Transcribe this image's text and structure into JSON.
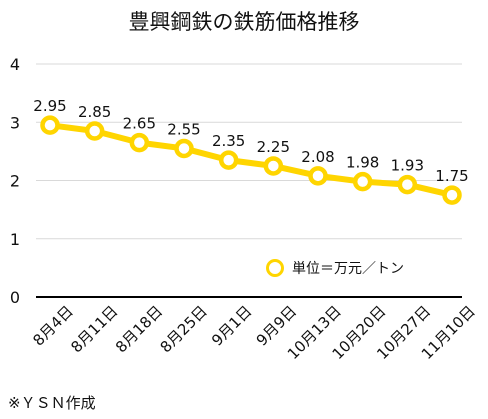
{
  "chart_data": {
    "type": "line",
    "title": "豊興鋼鉄の鉄筋価格推移",
    "categories": [
      "8月4日",
      "8月11日",
      "8月18日",
      "8月25日",
      "9月1日",
      "9月9日",
      "10月13日",
      "10月20日",
      "10月27日",
      "11月10日"
    ],
    "series": [
      {
        "name": "単位＝万元／トン",
        "values": [
          2.95,
          2.85,
          2.65,
          2.55,
          2.35,
          2.25,
          2.08,
          1.98,
          1.93,
          1.75
        ]
      }
    ],
    "data_labels": [
      "2.95",
      "2.85",
      "2.65",
      "2.55",
      "2.35",
      "2.25",
      "2.08",
      "1.98",
      "1.93",
      "1.75"
    ],
    "yticks": [
      "0",
      "1",
      "2",
      "3",
      "4"
    ],
    "ylim": [
      0,
      4
    ],
    "grid": true,
    "legend_position": "bottom-right",
    "colors": {
      "line": "#FFD500",
      "marker_fill": "#ffffff",
      "grid": "#d9d9d9",
      "axis": "#000000"
    }
  },
  "footnote": "※ＹＳＮ作成"
}
